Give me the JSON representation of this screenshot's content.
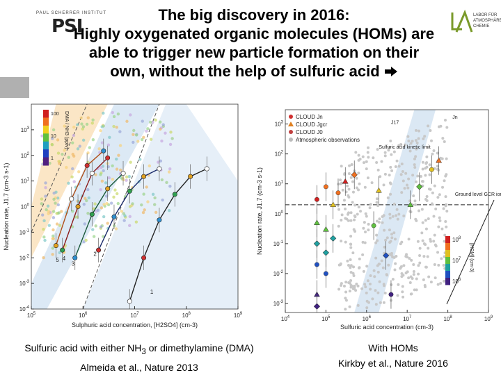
{
  "header": {
    "title_line1": "The big discovery in 2016:",
    "title_line2": "Highly oxygenated organic molecules (HOMs) are",
    "title_line3": "able to trigger new particle formation on their",
    "title_line4": "own, without the help of sulfuric acid",
    "psi_logo_top": "PAUL SCHERRER INSTITUT",
    "psi_logo_text": "PSI",
    "lac_logo_text": "LABOR FÜR ATMOSPHÄREN CHEMIE"
  },
  "left_caption": {
    "line1_prefix": "Sulfuric acid with either NH",
    "line1_sub": "3",
    "line1_suffix": " or dimethylamine (DMA)",
    "line2": "Almeida et al., Nature 2013"
  },
  "right_caption": {
    "line1": "With HOMs",
    "line2": "Kirkby et al., Nature 2016"
  },
  "chart_data": [
    {
      "type": "scatter",
      "title": "",
      "xlabel": "Sulphuric acid concentration, [H2SO4] (cm-3)",
      "ylabel": "Nucleation rate, J1.7 (cm-3 s-1)",
      "xscale": "log",
      "yscale": "log",
      "xlim": [
        100000,
        1000000000
      ],
      "ylim": [
        0.0001,
        10000
      ],
      "x_ticks": [
        "10^5",
        "10^6",
        "10^7",
        "10^8",
        "10^9"
      ],
      "y_ticks": [
        "10^-4",
        "10^-3",
        "10^-2",
        "10^-1",
        "10^0",
        "10^1",
        "10^2",
        "10^3"
      ],
      "colorbar_label": "DMA / NH3 (pptv)",
      "colorbar_ticks": [
        "100",
        "10",
        "1"
      ],
      "curve_labels": [
        "1",
        "2",
        "3",
        "4",
        "5"
      ],
      "series": [
        {
          "name": "curve 1",
          "x": [
            8000000,
            15000000,
            30000000,
            60000000,
            120000000,
            250000000
          ],
          "y": [
            0.0002,
            0.01,
            0.3,
            3,
            15,
            30
          ]
        },
        {
          "name": "curve 2",
          "x": [
            2000000,
            4000000,
            8000000,
            15000000,
            30000000
          ],
          "y": [
            0.02,
            0.4,
            4,
            15,
            30
          ]
        },
        {
          "name": "curve 3",
          "x": [
            700000,
            1500000,
            3000000,
            6000000
          ],
          "y": [
            0.01,
            0.5,
            5,
            20
          ]
        },
        {
          "name": "curve 4",
          "x": [
            400000,
            800000,
            1500000,
            3000000
          ],
          "y": [
            0.02,
            1,
            20,
            80
          ]
        },
        {
          "name": "curve 5",
          "x": [
            300000,
            600000,
            1200000,
            2500000
          ],
          "y": [
            0.03,
            2,
            40,
            150
          ]
        }
      ]
    },
    {
      "type": "scatter",
      "title": "",
      "xlabel": "Sulfuric acid concentration (cm-3)",
      "ylabel": "Nucleation rate, J1.7 (cm-3 s-1)",
      "xscale": "log",
      "yscale": "log",
      "xlim": [
        10000,
        1000000000
      ],
      "ylim": [
        0.0005,
        3000
      ],
      "x_ticks": [
        "10^4",
        "10^5",
        "10^6",
        "10^7",
        "10^8",
        "10^9"
      ],
      "y_ticks": [
        "10^-3",
        "10^-2",
        "10^-1",
        "10^0",
        "10^1",
        "10^2",
        "10^3"
      ],
      "legend": [
        "CLOUD Jn",
        "CLOUD Jgcr",
        "CLOUD J0",
        "Atmospheric observations"
      ],
      "annotations": [
        "J17",
        "Jn",
        "Sulfuric acid kinetic limit",
        "Ground level GCR ion production limit"
      ],
      "colorbar_label": "[HOM] (cm-3)",
      "colorbar_ticks": [
        "10^8",
        "10^7",
        "10^6"
      ],
      "ion_limit": 2
    }
  ]
}
